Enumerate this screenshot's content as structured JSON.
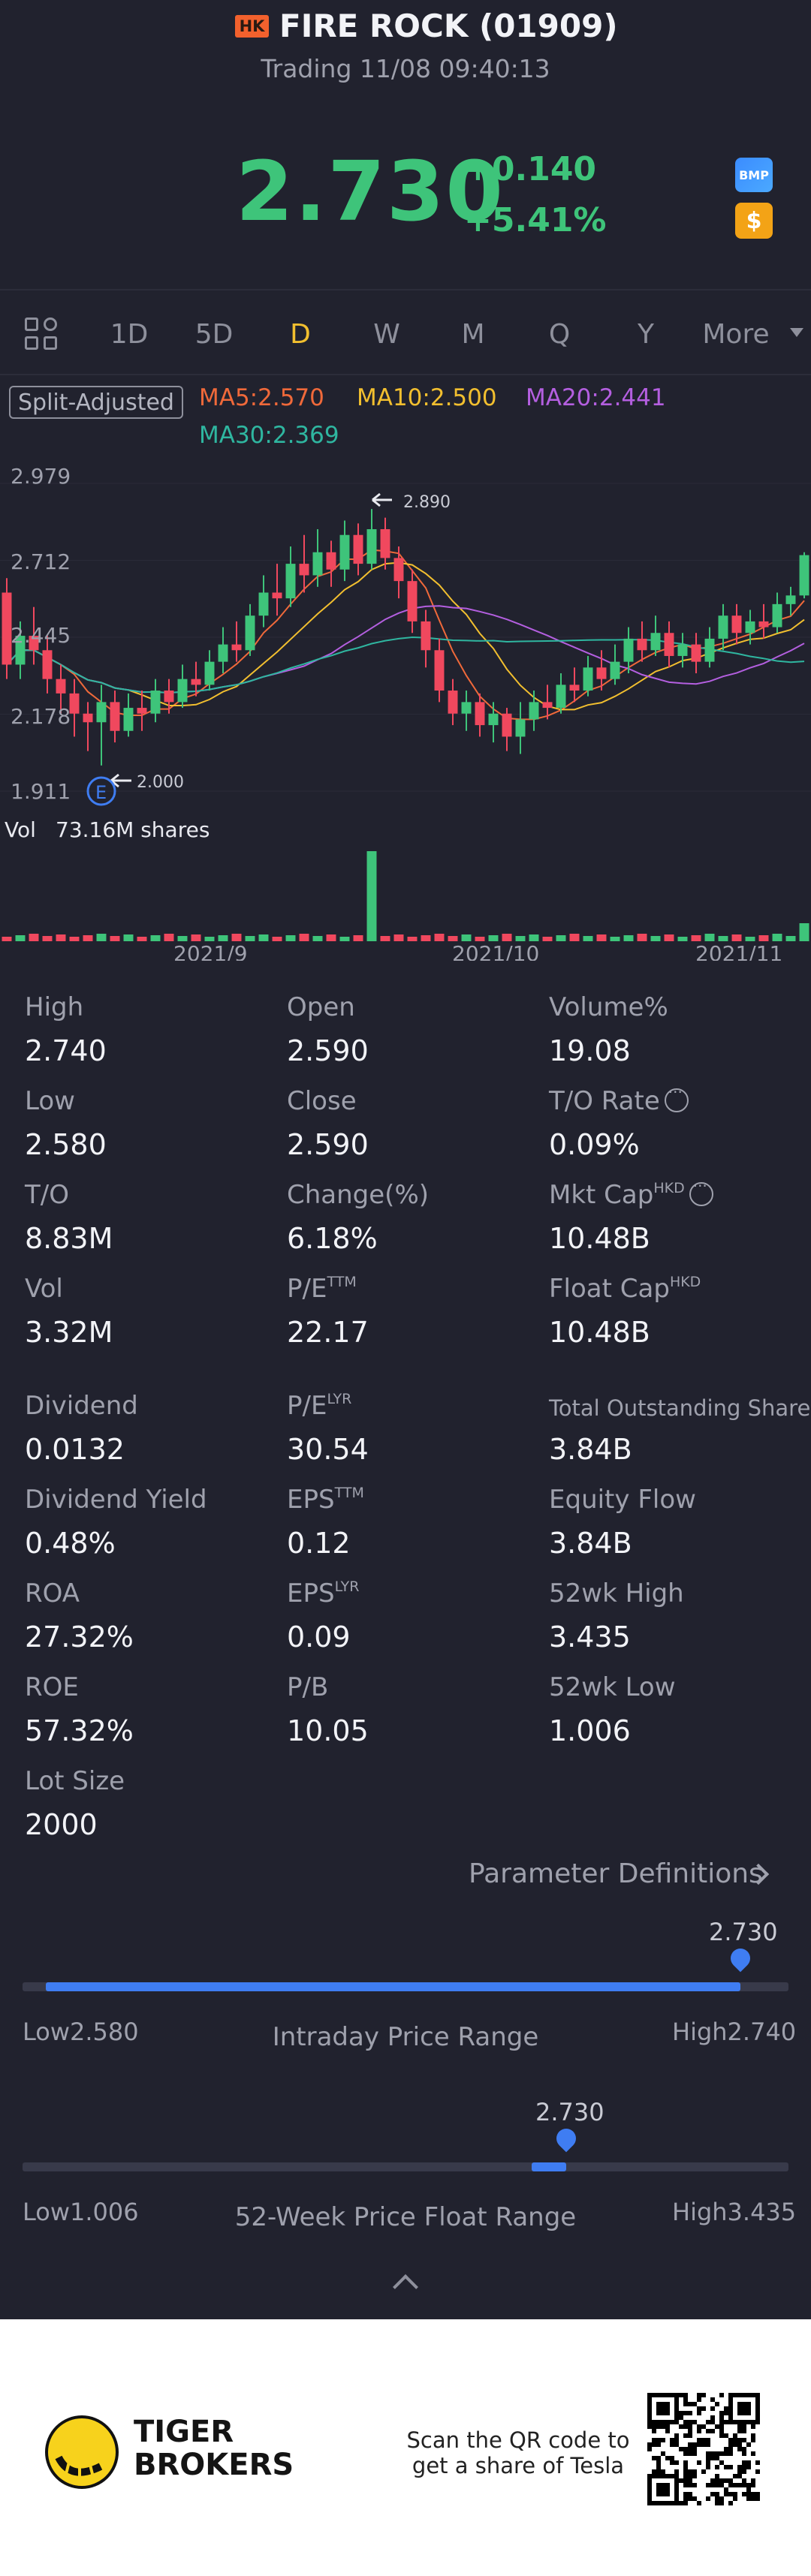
{
  "header": {
    "market_badge": "HK",
    "title": "FIRE ROCK (01909)",
    "status": "Trading 11/08 09:40:13"
  },
  "quote": {
    "price": "2.730",
    "change": "+0.140",
    "change_pct": "+5.41%",
    "badge_bmp": "BMP",
    "badge_dollar": "$",
    "up_color": "#3ec47a"
  },
  "tabs": [
    {
      "label": "1D"
    },
    {
      "label": "5D"
    },
    {
      "label": "D",
      "active": true
    },
    {
      "label": "W"
    },
    {
      "label": "M"
    },
    {
      "label": "Q"
    },
    {
      "label": "Y"
    },
    {
      "label": "More"
    }
  ],
  "indicators": {
    "split_label": "Split-Adjusted",
    "ma5": "MA5:2.570",
    "ma5_color": "#f0693a",
    "ma10": "MA10:2.500",
    "ma10_color": "#f2bf2f",
    "ma20": "MA20:2.441",
    "ma20_color": "#b45fe0",
    "ma30": "MA30:2.369",
    "ma30_color": "#2fb6a0"
  },
  "chart": {
    "y_labels": [
      "2.979",
      "2.712",
      "2.445",
      "2.178",
      "1.911"
    ],
    "high_marker": "2.890",
    "low_marker": "2.000",
    "event_marker": "E",
    "volume_label": "Vol",
    "volume_value": "73.16M shares",
    "x_labels": [
      "2021/9",
      "2021/10",
      "2021/11"
    ]
  },
  "chart_data": {
    "type": "candlestick",
    "ylim": [
      1.911,
      2.979
    ],
    "y_ticks": [
      2.979,
      2.712,
      2.445,
      2.178,
      1.911
    ],
    "x_ticks": [
      "2021/9",
      "2021/10",
      "2021/11"
    ],
    "annotations": [
      {
        "label": "2.890",
        "kind": "high"
      },
      {
        "label": "2.000",
        "kind": "low"
      }
    ],
    "candles": [
      [
        2.6,
        2.35,
        2.65,
        2.3
      ],
      [
        2.35,
        2.45,
        2.5,
        2.3
      ],
      [
        2.45,
        2.4,
        2.55,
        2.35
      ],
      [
        2.4,
        2.3,
        2.45,
        2.25
      ],
      [
        2.3,
        2.25,
        2.35,
        2.18
      ],
      [
        2.25,
        2.18,
        2.3,
        2.1
      ],
      [
        2.18,
        2.15,
        2.22,
        2.05
      ],
      [
        2.15,
        2.22,
        2.28,
        2.0
      ],
      [
        2.22,
        2.12,
        2.26,
        2.08
      ],
      [
        2.12,
        2.2,
        2.25,
        2.1
      ],
      [
        2.2,
        2.18,
        2.26,
        2.12
      ],
      [
        2.18,
        2.26,
        2.3,
        2.15
      ],
      [
        2.26,
        2.22,
        2.3,
        2.18
      ],
      [
        2.22,
        2.3,
        2.35,
        2.2
      ],
      [
        2.3,
        2.28,
        2.36,
        2.24
      ],
      [
        2.28,
        2.36,
        2.4,
        2.26
      ],
      [
        2.36,
        2.42,
        2.48,
        2.32
      ],
      [
        2.42,
        2.4,
        2.5,
        2.36
      ],
      [
        2.4,
        2.52,
        2.56,
        2.38
      ],
      [
        2.52,
        2.6,
        2.66,
        2.48
      ],
      [
        2.6,
        2.58,
        2.7,
        2.52
      ],
      [
        2.58,
        2.7,
        2.76,
        2.55
      ],
      [
        2.7,
        2.66,
        2.8,
        2.6
      ],
      [
        2.66,
        2.74,
        2.82,
        2.62
      ],
      [
        2.74,
        2.68,
        2.78,
        2.62
      ],
      [
        2.68,
        2.8,
        2.85,
        2.64
      ],
      [
        2.8,
        2.7,
        2.84,
        2.66
      ],
      [
        2.7,
        2.82,
        2.89,
        2.68
      ],
      [
        2.82,
        2.72,
        2.86,
        2.68
      ],
      [
        2.72,
        2.64,
        2.76,
        2.58
      ],
      [
        2.64,
        2.5,
        2.68,
        2.46
      ],
      [
        2.5,
        2.4,
        2.54,
        2.34
      ],
      [
        2.4,
        2.26,
        2.44,
        2.22
      ],
      [
        2.26,
        2.18,
        2.3,
        2.14
      ],
      [
        2.18,
        2.22,
        2.26,
        2.12
      ],
      [
        2.22,
        2.14,
        2.25,
        2.1
      ],
      [
        2.14,
        2.18,
        2.22,
        2.08
      ],
      [
        2.18,
        2.1,
        2.2,
        2.05
      ],
      [
        2.1,
        2.16,
        2.22,
        2.04
      ],
      [
        2.16,
        2.22,
        2.26,
        2.12
      ],
      [
        2.22,
        2.2,
        2.28,
        2.16
      ],
      [
        2.2,
        2.28,
        2.32,
        2.18
      ],
      [
        2.28,
        2.26,
        2.34,
        2.22
      ],
      [
        2.26,
        2.34,
        2.38,
        2.24
      ],
      [
        2.34,
        2.3,
        2.4,
        2.26
      ],
      [
        2.3,
        2.36,
        2.42,
        2.28
      ],
      [
        2.36,
        2.44,
        2.48,
        2.32
      ],
      [
        2.44,
        2.4,
        2.5,
        2.36
      ],
      [
        2.4,
        2.46,
        2.52,
        2.38
      ],
      [
        2.46,
        2.38,
        2.5,
        2.34
      ],
      [
        2.38,
        2.42,
        2.46,
        2.34
      ],
      [
        2.42,
        2.36,
        2.46,
        2.32
      ],
      [
        2.36,
        2.44,
        2.48,
        2.34
      ],
      [
        2.44,
        2.52,
        2.56,
        2.4
      ],
      [
        2.52,
        2.46,
        2.56,
        2.42
      ],
      [
        2.46,
        2.5,
        2.54,
        2.42
      ],
      [
        2.5,
        2.48,
        2.56,
        2.44
      ],
      [
        2.48,
        2.56,
        2.6,
        2.46
      ],
      [
        2.56,
        2.59,
        2.62,
        2.52
      ],
      [
        2.59,
        2.73,
        2.74,
        2.58
      ]
    ],
    "volume_spike_index": 27
  },
  "stats": [
    {
      "label": "High",
      "value": "2.740"
    },
    {
      "label": "Open",
      "value": "2.590"
    },
    {
      "label": "Volume%",
      "value": "19.08"
    },
    {
      "label": "Low",
      "value": "2.580"
    },
    {
      "label": "Close",
      "value": "2.590"
    },
    {
      "label": "T/O Rate",
      "value": "0.09%",
      "info": true
    },
    {
      "label": "T/O",
      "value": "8.83M"
    },
    {
      "label": "Change(%)",
      "value": "6.18%"
    },
    {
      "label": "Mkt Cap",
      "sup": "HKD",
      "value": "10.48B",
      "info": true
    },
    {
      "label": "Vol",
      "value": "3.32M"
    },
    {
      "label": "P/E",
      "sup": "TTM",
      "value": "22.17"
    },
    {
      "label": "Float Cap",
      "sup": "HKD",
      "value": "10.48B"
    },
    {
      "label": "Dividend",
      "value": "0.0132"
    },
    {
      "label": "P/E",
      "sup": "LYR",
      "value": "30.54"
    },
    {
      "label": "Total Outstanding Shares",
      "value": "3.84B",
      "small": true
    },
    {
      "label": "Dividend Yield",
      "value": "0.48%"
    },
    {
      "label": "EPS",
      "sup": "TTM",
      "value": "0.12"
    },
    {
      "label": "Equity Flow",
      "value": "3.84B"
    },
    {
      "label": "ROA",
      "value": "27.32%"
    },
    {
      "label": "EPS",
      "sup": "LYR",
      "value": "0.09"
    },
    {
      "label": "52wk High",
      "value": "3.435"
    },
    {
      "label": "ROE",
      "value": "57.32%"
    },
    {
      "label": "P/B",
      "value": "10.05"
    },
    {
      "label": "52wk Low",
      "value": "1.006"
    },
    {
      "label": "Lot Size",
      "value": "2000"
    }
  ],
  "param_link": "Parameter Definitions",
  "intraday_range": {
    "current": "2.730",
    "low_label": "Low",
    "low": "2.580",
    "high_label": "High",
    "high": "2.740",
    "title": "Intraday Price Range",
    "position": 0.9375
  },
  "week52_range": {
    "current": "2.730",
    "low_label": "Low",
    "low": "1.006",
    "high_label": "High",
    "high": "3.435",
    "title": "52-Week Price Float Range",
    "position": 0.7098
  },
  "footer": {
    "brand_line1": "TIGER",
    "brand_line2": "BROKERS",
    "scan_text": "Scan the QR code to get a share of Tesla"
  }
}
